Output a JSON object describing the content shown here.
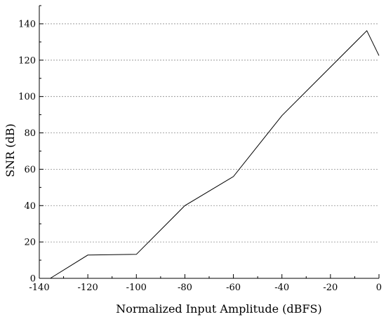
{
  "chart_data": {
    "type": "line",
    "title": "",
    "xlabel": "Normalized Input Amplitude (dBFS)",
    "ylabel": "SNR (dB)",
    "xlim": [
      -140,
      0
    ],
    "ylim": [
      0,
      150
    ],
    "xticks": [
      -140,
      -120,
      -100,
      -80,
      -60,
      -40,
      -20,
      0
    ],
    "yticks": [
      0,
      20,
      40,
      60,
      80,
      100,
      120,
      140
    ],
    "grid": "horizontal-dashed",
    "series": [
      {
        "x": [
          -135.5,
          -120,
          -100,
          -80,
          -60,
          -40,
          -5,
          0
        ],
        "y": [
          0,
          12.8,
          13.2,
          40,
          56,
          89.5,
          136.2,
          122.5
        ],
        "color": "#000000"
      }
    ]
  }
}
